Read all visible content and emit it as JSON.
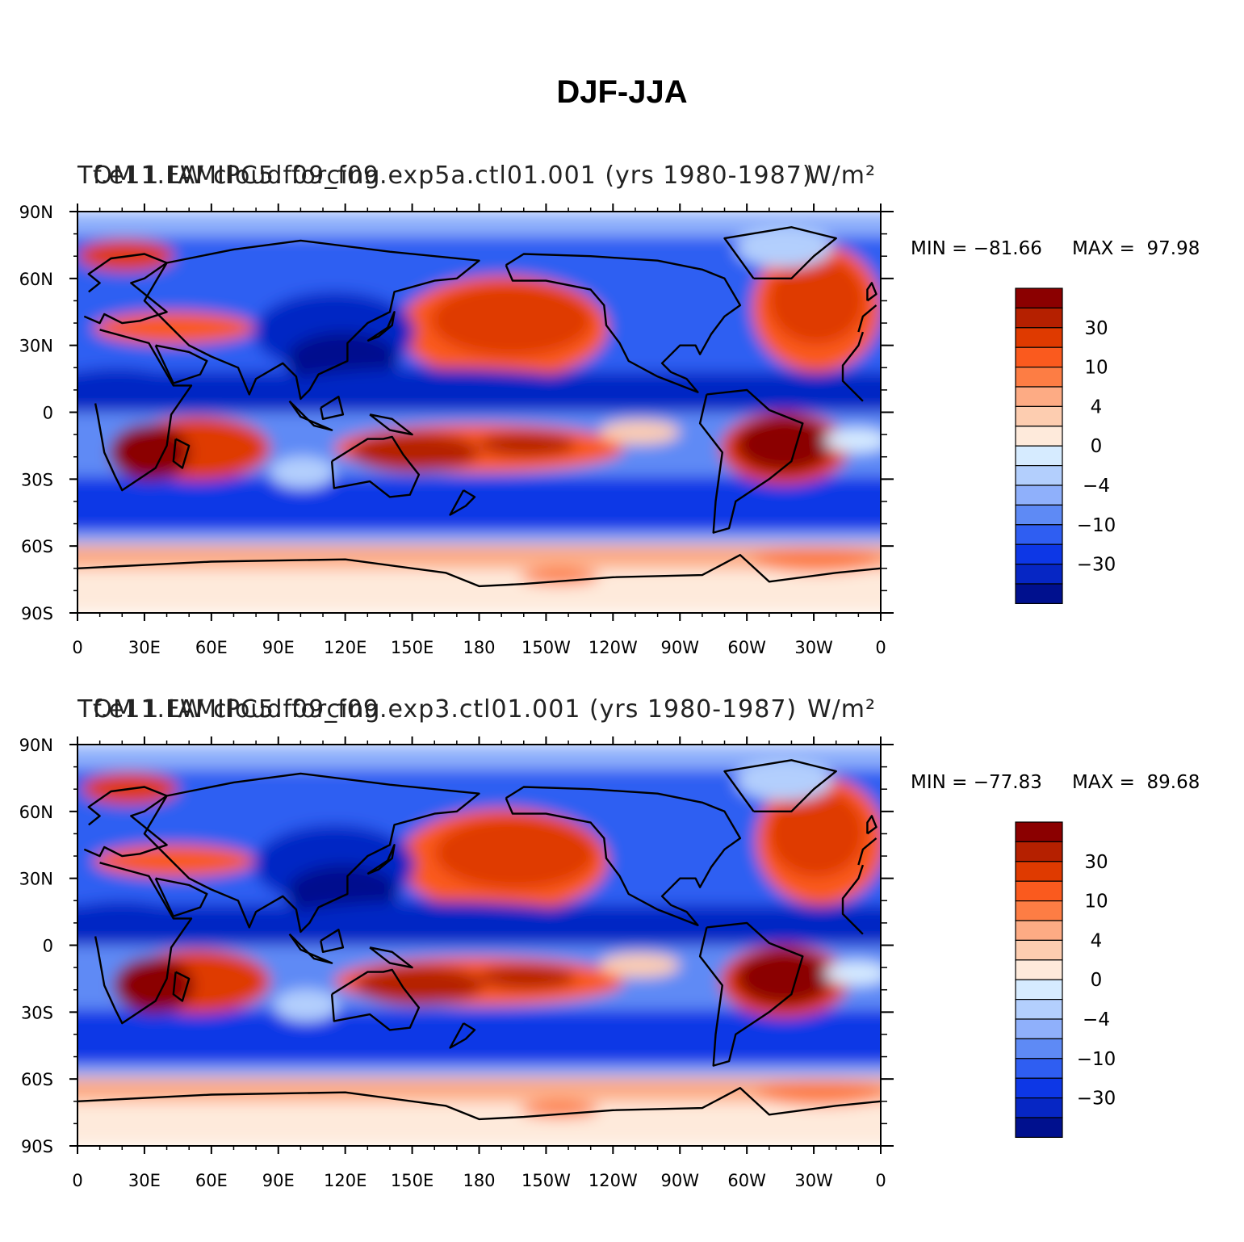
{
  "figure": {
    "title": "DJF-JJA"
  },
  "panels": [
    {
      "left_title": "TOM 1 LW cloud forcing",
      "center_title": "f.e11.FAMIPC5.f09_f09.exp5a.ctl01.001 (yrs 1980-1987)",
      "units": "W/m²",
      "min_label": "MIN = −81.66",
      "max_label": "MAX =  97.98"
    },
    {
      "left_title": "TOM 1 LW cloud forcing",
      "center_title": "f.e11.FAMIPC5.f09_f09.exp3.ctl01.001 (yrs 1980-1987)",
      "units": "W/m²",
      "min_label": "MIN = −77.83",
      "max_label": "MAX =  89.68"
    }
  ],
  "chart_data": [
    {
      "type": "heatmap",
      "projection": "cylindrical-equidistant",
      "title": "f.e11.FAMIPC5.f09_f09.exp5a.ctl01.001 (yrs 1980-1987)",
      "variable": "TOM 1 LW cloud forcing",
      "units": "W/m²",
      "min": -81.66,
      "max": 97.98,
      "lon_ticks": [
        "0",
        "30E",
        "60E",
        "90E",
        "120E",
        "150E",
        "180",
        "150W",
        "120W",
        "90W",
        "60W",
        "30W",
        "0"
      ],
      "lat_ticks": [
        "90N",
        "60N",
        "30N",
        "0",
        "30S",
        "60S",
        "90S"
      ],
      "lon_range": [
        0,
        360
      ],
      "lat_range": [
        -90,
        90
      ],
      "colorbar_levels": [
        -50,
        -40,
        -30,
        -20,
        -10,
        -7,
        -4,
        -2,
        0,
        2,
        4,
        7,
        10,
        20,
        30,
        40,
        50
      ],
      "colorbar_labels": [
        "30",
        "10",
        "4",
        "0",
        "−4",
        "−10",
        "−30"
      ]
    },
    {
      "type": "heatmap",
      "projection": "cylindrical-equidistant",
      "title": "f.e11.FAMIPC5.f09_f09.exp3.ctl01.001 (yrs 1980-1987)",
      "variable": "TOM 1 LW cloud forcing",
      "units": "W/m²",
      "min": -77.83,
      "max": 89.68,
      "lon_ticks": [
        "0",
        "30E",
        "60E",
        "90E",
        "120E",
        "150E",
        "180",
        "150W",
        "120W",
        "90W",
        "60W",
        "30W",
        "0"
      ],
      "lat_ticks": [
        "90N",
        "60N",
        "30N",
        "0",
        "30S",
        "60S",
        "90S"
      ],
      "lon_range": [
        0,
        360
      ],
      "lat_range": [
        -90,
        90
      ],
      "colorbar_levels": [
        -50,
        -40,
        -30,
        -20,
        -10,
        -7,
        -4,
        -2,
        0,
        2,
        4,
        7,
        10,
        20,
        30,
        40,
        50
      ],
      "colorbar_labels": [
        "30",
        "10",
        "4",
        "0",
        "−4",
        "−10",
        "−30"
      ]
    }
  ],
  "colors": {
    "palette": [
      "#8b0000",
      "#b52000",
      "#df3a00",
      "#fa5a1e",
      "#fd7d44",
      "#fdab84",
      "#fdcdb0",
      "#feeadb",
      "#d6ebff",
      "#b3cffd",
      "#8fb0fb",
      "#5e8af5",
      "#2f5ef2",
      "#0d37e6",
      "#0626c4",
      "#00108e"
    ]
  }
}
